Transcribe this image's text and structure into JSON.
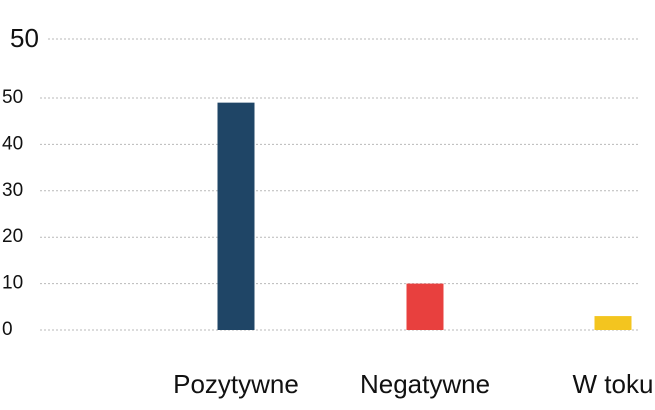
{
  "chart_data": {
    "type": "bar",
    "categories": [
      "Pozytywne",
      "Negatywne",
      "W toku"
    ],
    "values": [
      49,
      10,
      3
    ],
    "ylim": [
      0,
      50
    ],
    "yticks": [
      0,
      10,
      20,
      30,
      40,
      50
    ],
    "ytick_labels": [
      "0",
      "10",
      "20",
      "30",
      "40",
      "50"
    ],
    "top_tick_label": "50",
    "colors": [
      "#1f4566",
      "#e8403e",
      "#f3c51f"
    ],
    "grid": true,
    "title": "",
    "xlabel": "",
    "ylabel": ""
  }
}
